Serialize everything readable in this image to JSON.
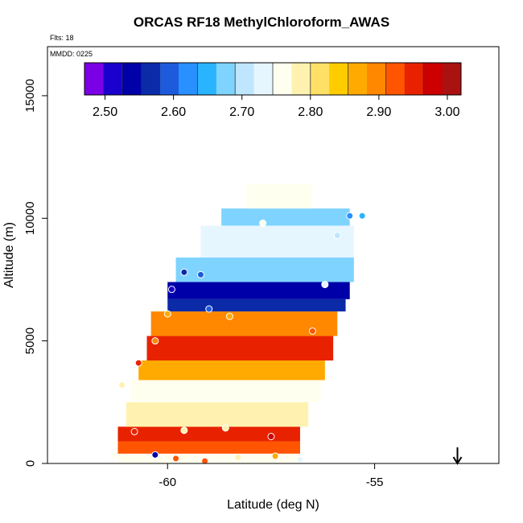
{
  "chart_data": {
    "type": "heatmap",
    "title": "ORCAS RF18 MethylChloroform_AWAS",
    "flights_note": "Flts: 18",
    "date_note": "MMDD: 0225",
    "xlabel": "Latitude (deg N)",
    "ylabel": "Altitude (m)",
    "xlim": [
      -62.9,
      -52.0
    ],
    "ylim": [
      0,
      17000
    ],
    "x_ticks": [
      -60,
      -55
    ],
    "x_tick_labels": [
      "-60",
      "-55"
    ],
    "y_ticks": [
      0,
      5000,
      10000,
      15000
    ],
    "y_tick_labels": [
      "0",
      "5000",
      "10000",
      "15000"
    ],
    "colorbar": {
      "range": [
        2.47,
        3.02
      ],
      "ticks": [
        2.5,
        2.6,
        2.7,
        2.8,
        2.9,
        3.0
      ],
      "tick_labels": [
        "2.50",
        "2.60",
        "2.70",
        "2.80",
        "2.90",
        "3.00"
      ],
      "colors": [
        "#7a00e6",
        "#1a00cc",
        "#0000a8",
        "#0a2aa8",
        "#1e5adc",
        "#2890ff",
        "#2ab4ff",
        "#7fd4ff",
        "#bfe6ff",
        "#e6f6ff",
        "#fffff0",
        "#fff2b0",
        "#ffe066",
        "#ffcc00",
        "#ffaa00",
        "#ff8800",
        "#ff5500",
        "#e82200",
        "#cc0000",
        "#aa1111"
      ]
    },
    "bands": [
      {
        "lat_range": [
          -61.2,
          -56.8
        ],
        "alt_range": [
          0,
          400
        ],
        "value": 2.76
      },
      {
        "lat_range": [
          -61.2,
          -56.8
        ],
        "alt_range": [
          400,
          900
        ],
        "value": 2.93
      },
      {
        "lat_range": [
          -61.2,
          -56.8
        ],
        "alt_range": [
          900,
          1500
        ],
        "value": 2.95
      },
      {
        "lat_range": [
          -61.0,
          -56.6
        ],
        "alt_range": [
          1500,
          2500
        ],
        "value": 2.78
      },
      {
        "lat_range": [
          -60.9,
          -56.3
        ],
        "alt_range": [
          2500,
          3400
        ],
        "value": 2.77
      },
      {
        "lat_range": [
          -60.7,
          -56.2
        ],
        "alt_range": [
          3400,
          4200
        ],
        "value": 2.88
      },
      {
        "lat_range": [
          -60.5,
          -56.0
        ],
        "alt_range": [
          4200,
          5200
        ],
        "value": 2.94
      },
      {
        "lat_range": [
          -60.4,
          -55.9
        ],
        "alt_range": [
          5200,
          6200
        ],
        "value": 2.89
      },
      {
        "lat_range": [
          -60.0,
          -55.7
        ],
        "alt_range": [
          6200,
          6700
        ],
        "value": 2.56
      },
      {
        "lat_range": [
          -60.0,
          -55.6
        ],
        "alt_range": [
          6700,
          7400
        ],
        "value": 2.55
      },
      {
        "lat_range": [
          -59.8,
          -55.5
        ],
        "alt_range": [
          7400,
          8400
        ],
        "value": 2.68
      },
      {
        "lat_range": [
          -59.2,
          -55.5
        ],
        "alt_range": [
          8400,
          9700
        ],
        "value": 2.73
      },
      {
        "lat_range": [
          -58.7,
          -55.6
        ],
        "alt_range": [
          9700,
          10400
        ],
        "value": 2.67
      },
      {
        "lat_range": [
          -58.1,
          -56.5
        ],
        "alt_range": [
          10400,
          11400
        ],
        "value": 2.76
      }
    ],
    "sample_points": [
      {
        "lat": -61.3,
        "alt": 300,
        "value": 2.76
      },
      {
        "lat": -60.3,
        "alt": 350,
        "value": 2.55
      },
      {
        "lat": -59.8,
        "alt": 200,
        "value": 2.93
      },
      {
        "lat": -59.1,
        "alt": 100,
        "value": 2.92
      },
      {
        "lat": -58.3,
        "alt": 250,
        "value": 2.78
      },
      {
        "lat": -57.4,
        "alt": 300,
        "value": 2.86
      },
      {
        "lat": -56.8,
        "alt": 150,
        "value": 2.74
      },
      {
        "lat": -60.8,
        "alt": 1300,
        "value": 2.96
      },
      {
        "lat": -59.6,
        "alt": 1350,
        "value": 2.78
      },
      {
        "lat": -58.6,
        "alt": 1450,
        "value": 2.8
      },
      {
        "lat": -57.5,
        "alt": 1100,
        "value": 2.97
      },
      {
        "lat": -61.1,
        "alt": 3200,
        "value": 2.8
      },
      {
        "lat": -60.3,
        "alt": 5000,
        "value": 2.9
      },
      {
        "lat": -60.0,
        "alt": 6100,
        "value": 2.88
      },
      {
        "lat": -59.0,
        "alt": 6300,
        "value": 2.6
      },
      {
        "lat": -58.5,
        "alt": 6000,
        "value": 2.88
      },
      {
        "lat": -56.5,
        "alt": 5400,
        "value": 2.93
      },
      {
        "lat": -59.9,
        "alt": 7100,
        "value": 2.52
      },
      {
        "lat": -59.6,
        "alt": 7800,
        "value": 2.56
      },
      {
        "lat": -59.2,
        "alt": 7700,
        "value": 2.6
      },
      {
        "lat": -56.2,
        "alt": 7300,
        "value": 2.72
      },
      {
        "lat": -57.7,
        "alt": 9800,
        "value": 2.76
      },
      {
        "lat": -55.9,
        "alt": 9300,
        "value": 2.7
      },
      {
        "lat": -55.6,
        "alt": 10100,
        "value": 2.63
      },
      {
        "lat": -55.3,
        "alt": 10100,
        "value": 2.66
      },
      {
        "lat": -60.7,
        "alt": 4100,
        "value": 2.95
      }
    ],
    "arrow": {
      "lat": -53.0,
      "direction": "down"
    }
  }
}
